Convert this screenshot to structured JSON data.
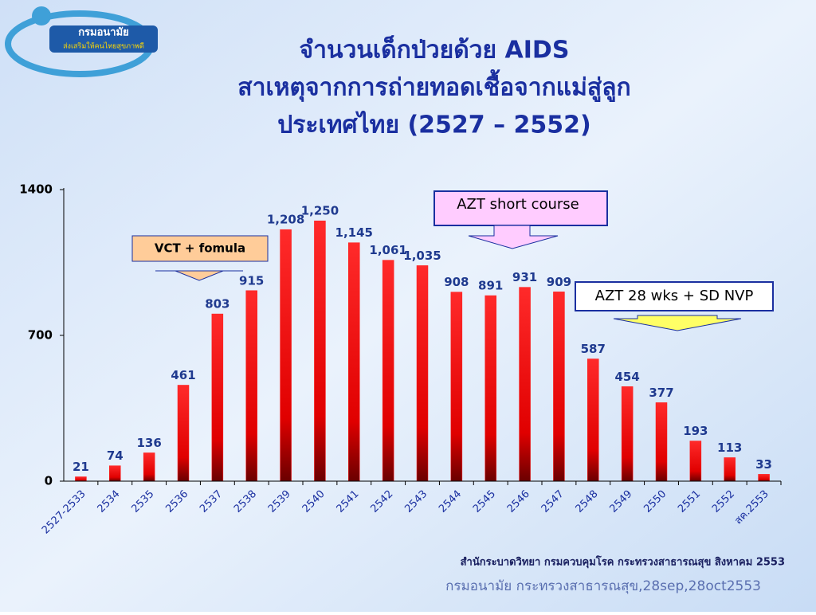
{
  "chart_data": {
    "type": "bar",
    "logo": {
      "name": "กรมอนามัย",
      "slogan": "ส่งเสริมให้คนไทยสุขภาพดี"
    },
    "title_lines": [
      "จำนวนเด็กป่วยด้วย AIDS",
      "สาเหตุจากการถ่ายทอดเชื้อจากแม่สู่ลูก",
      "ประเทศไทย (2527 – 2552)"
    ],
    "categories": [
      "2527-2533",
      "2534",
      "2535",
      "2536",
      "2537",
      "2538",
      "2539",
      "2540",
      "2541",
      "2542",
      "2543",
      "2544",
      "2545",
      "2546",
      "2547",
      "2548",
      "2549",
      "2550",
      "2551",
      "2552",
      "สค.2553"
    ],
    "values": [
      21,
      74,
      136,
      461,
      803,
      915,
      1208,
      1250,
      1145,
      1061,
      1035,
      908,
      891,
      931,
      909,
      587,
      454,
      377,
      193,
      113,
      33
    ],
    "value_labels": [
      "21",
      "74",
      "136",
      "461",
      "803",
      "915",
      "1,208",
      "1,250",
      "1,145",
      "1,061",
      "1,035",
      "908",
      "891",
      "931",
      "909",
      "587",
      "454",
      "377",
      "193",
      "113",
      "33"
    ],
    "color": "#ff1a1a",
    "ylim": [
      0,
      1400
    ],
    "yticks": [
      0,
      700,
      1400
    ],
    "annotations": [
      {
        "text": "VCT + fomula"
      },
      {
        "text": "AZT short course"
      },
      {
        "text": "AZT 28 wks + SD NVP"
      }
    ],
    "source": "สำนักระบาดวิทยา กรมควบคุมโรค กระทรวงสาธารณสุข สิงหาคม 2553",
    "footer": "กรมอนามัย กระทรวงสาธารณสุข,28sep,28oct2553"
  }
}
